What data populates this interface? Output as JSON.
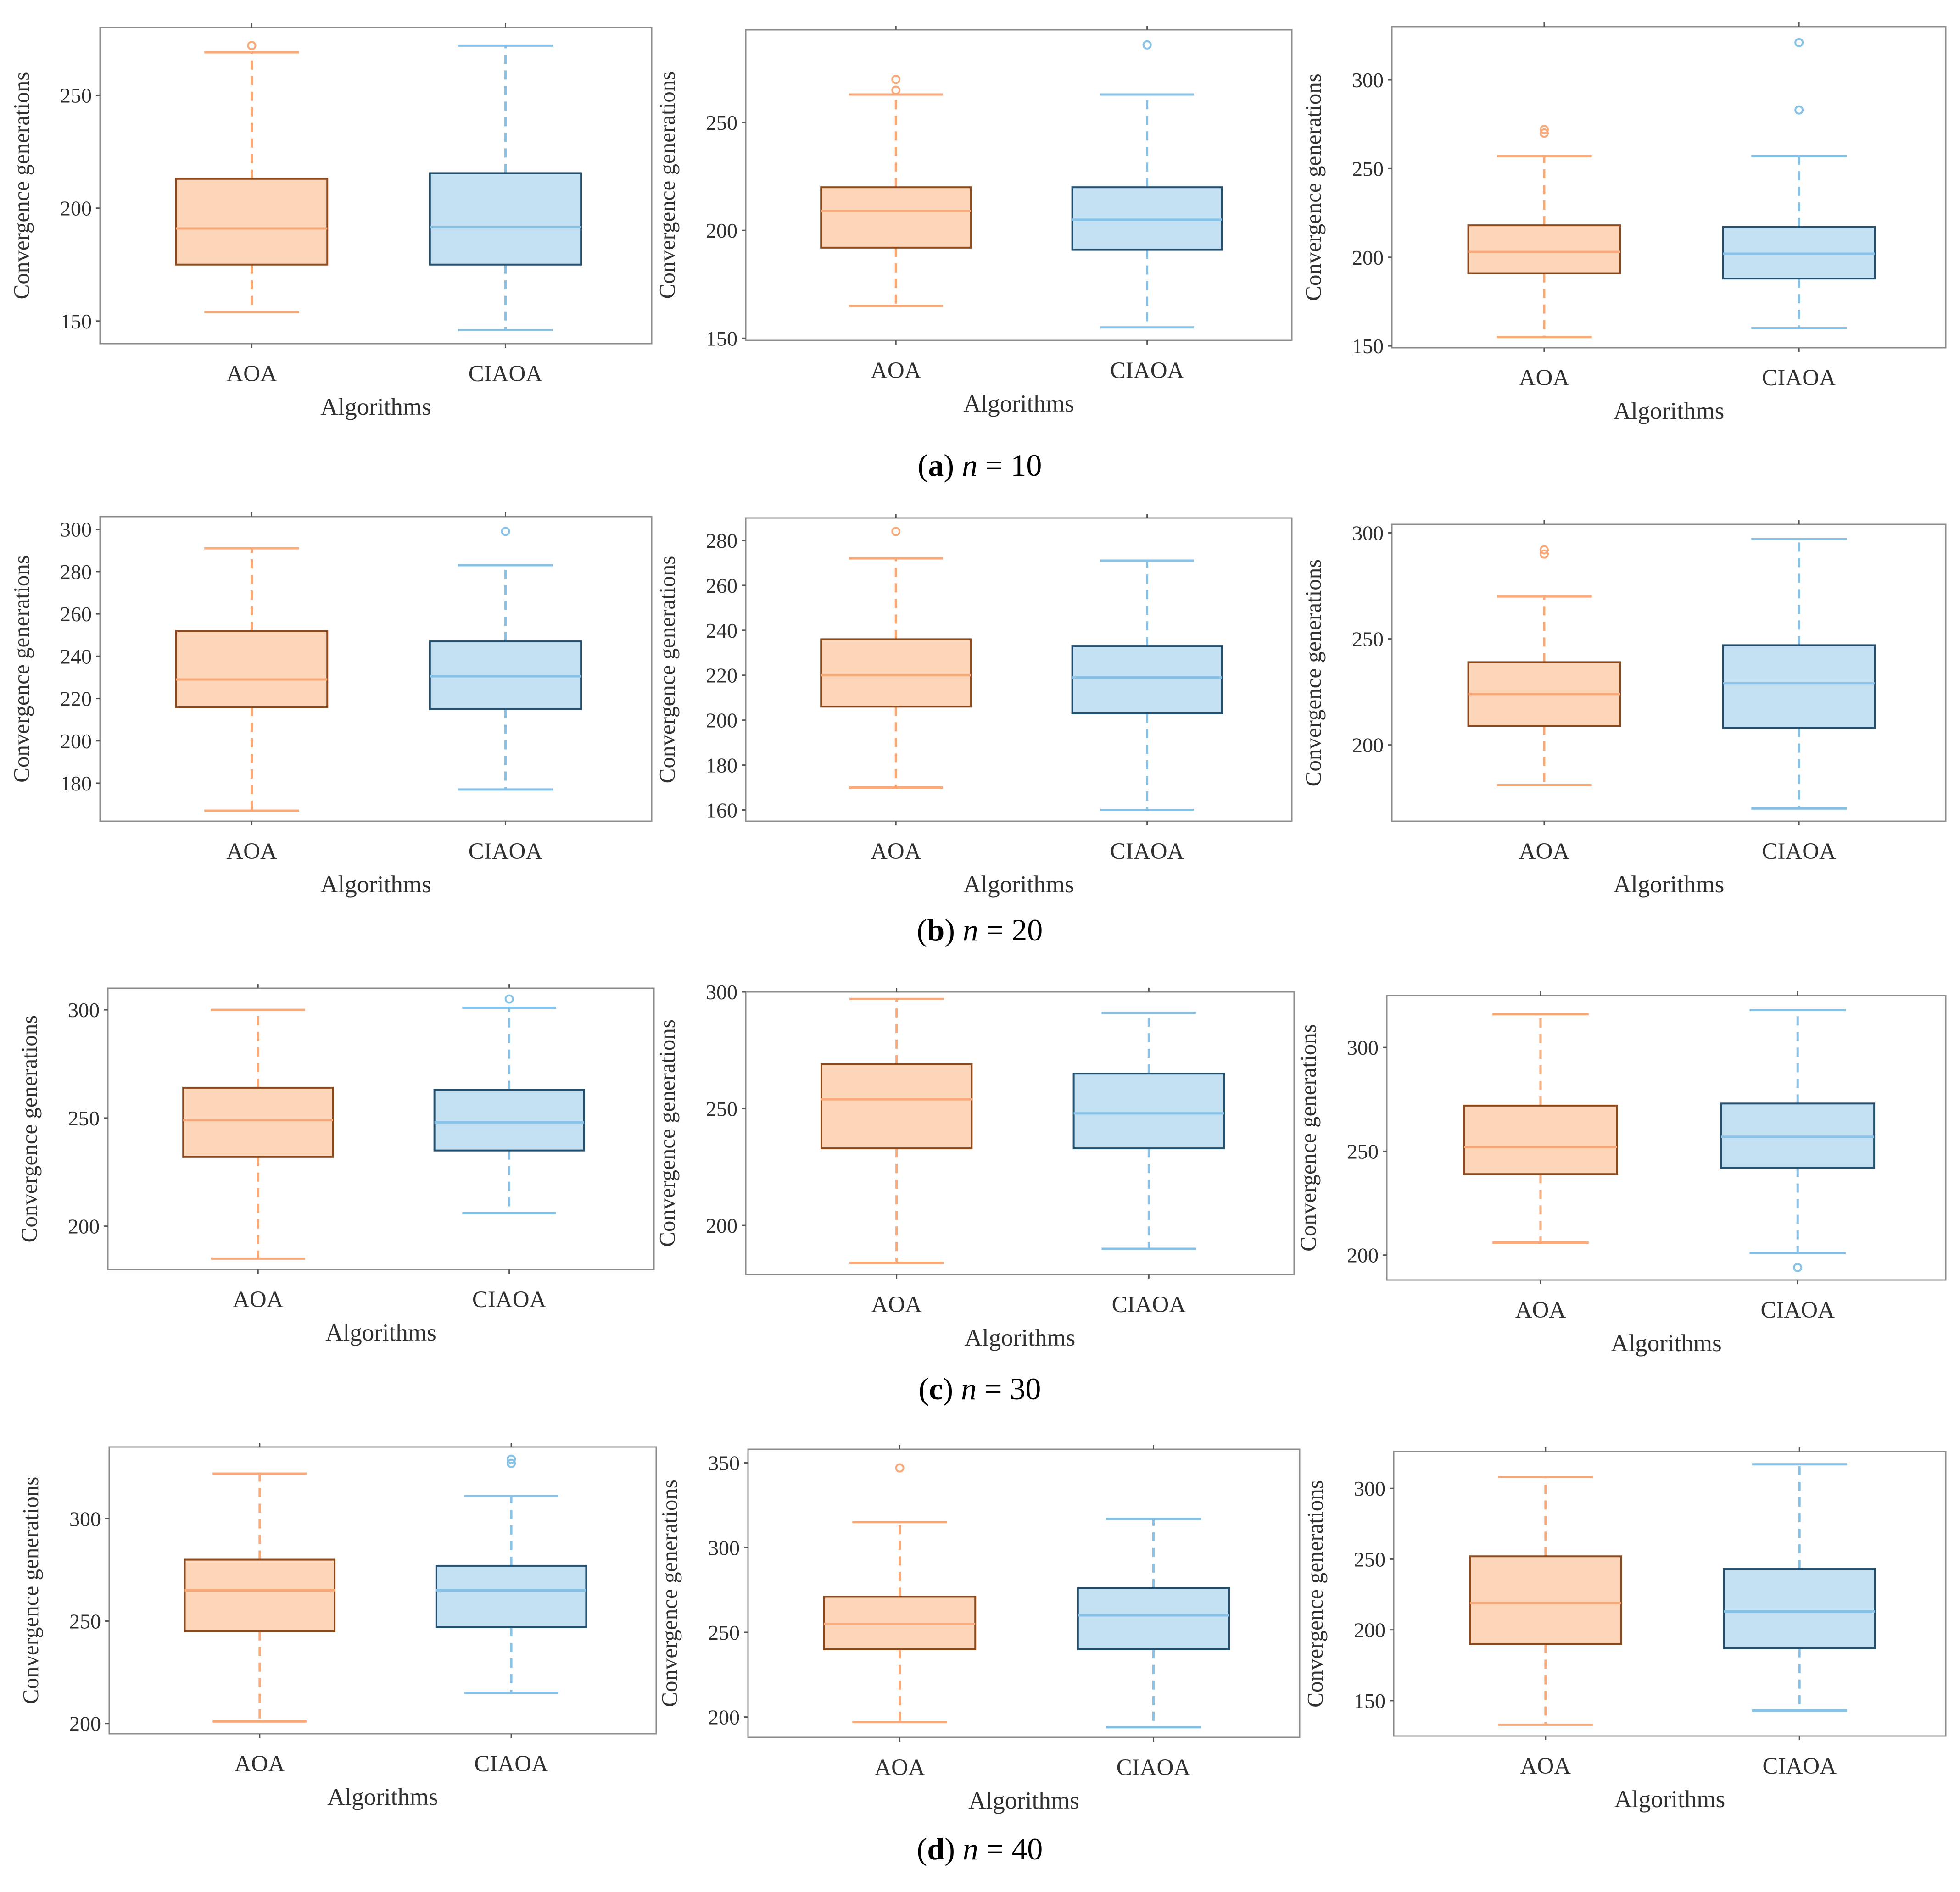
{
  "colors": {
    "AOA": {
      "fill": "#fdd5b8",
      "edge": "#8b4a1e",
      "line": "#f9a877"
    },
    "CIAOA": {
      "fill": "#c4e0f3",
      "edge": "#23506f",
      "line": "#86c2e8"
    },
    "frame": "#8c8c8c"
  },
  "chart_data": [
    {
      "type": "box",
      "group": "(a) n = 10",
      "xlabel": "Algorithms",
      "ylabel": "Convergence generations",
      "ylim": [
        140,
        280
      ],
      "yticks": [
        150,
        200,
        250
      ],
      "categories": [
        "AOA",
        "CIAOA"
      ],
      "boxes": [
        {
          "name": "AOA",
          "whislo": 154,
          "q1": 175,
          "med": 191,
          "q3": 213,
          "whishi": 269,
          "fliers": [
            272
          ]
        },
        {
          "name": "CIAOA",
          "whislo": 146,
          "q1": 175,
          "med": 191.5,
          "q3": 215.5,
          "whishi": 272,
          "fliers": []
        }
      ]
    },
    {
      "type": "box",
      "group": "(a) n = 10",
      "xlabel": "Algorithms",
      "ylabel": "Convergence generations",
      "ylim": [
        149,
        293
      ],
      "yticks": [
        150,
        200,
        250
      ],
      "categories": [
        "AOA",
        "CIAOA"
      ],
      "boxes": [
        {
          "name": "AOA",
          "whislo": 165,
          "q1": 192,
          "med": 209,
          "q3": 220,
          "whishi": 263,
          "fliers": [
            265,
            270
          ]
        },
        {
          "name": "CIAOA",
          "whislo": 155,
          "q1": 191,
          "med": 205,
          "q3": 220,
          "whishi": 263,
          "fliers": [
            286
          ]
        }
      ]
    },
    {
      "type": "box",
      "group": "(a) n = 10",
      "xlabel": "Algorithms",
      "ylabel": "Convergence generations",
      "ylim": [
        149,
        330
      ],
      "yticks": [
        150,
        200,
        250,
        300
      ],
      "categories": [
        "AOA",
        "CIAOA"
      ],
      "boxes": [
        {
          "name": "AOA",
          "whislo": 155,
          "q1": 191,
          "med": 203,
          "q3": 218,
          "whishi": 257,
          "fliers": [
            270,
            272
          ]
        },
        {
          "name": "CIAOA",
          "whislo": 160,
          "q1": 188,
          "med": 202,
          "q3": 217,
          "whishi": 257,
          "fliers": [
            283,
            321
          ]
        }
      ]
    },
    {
      "type": "box",
      "group": "(b) n = 20",
      "xlabel": "Algorithms",
      "ylabel": "Convergence generations",
      "ylim": [
        162,
        306
      ],
      "yticks": [
        180,
        200,
        220,
        240,
        260,
        280,
        300
      ],
      "categories": [
        "AOA",
        "CIAOA"
      ],
      "boxes": [
        {
          "name": "AOA",
          "whislo": 167,
          "q1": 216,
          "med": 229,
          "q3": 252,
          "whishi": 291,
          "fliers": []
        },
        {
          "name": "CIAOA",
          "whislo": 177,
          "q1": 215,
          "med": 230.5,
          "q3": 247,
          "whishi": 283,
          "fliers": [
            299
          ]
        }
      ]
    },
    {
      "type": "box",
      "group": "(b) n = 20",
      "xlabel": "Algorithms",
      "ylabel": "Convergence generations",
      "ylim": [
        155,
        290
      ],
      "yticks": [
        160,
        180,
        200,
        220,
        240,
        260,
        280
      ],
      "categories": [
        "AOA",
        "CIAOA"
      ],
      "boxes": [
        {
          "name": "AOA",
          "whislo": 170,
          "q1": 206,
          "med": 220,
          "q3": 236,
          "whishi": 272,
          "fliers": [
            284
          ]
        },
        {
          "name": "CIAOA",
          "whislo": 160,
          "q1": 203,
          "med": 219,
          "q3": 233,
          "whishi": 271,
          "fliers": []
        }
      ]
    },
    {
      "type": "box",
      "group": "(b) n = 20",
      "xlabel": "Algorithms",
      "ylabel": "Convergence generations",
      "ylim": [
        164,
        304
      ],
      "yticks": [
        200,
        250,
        300
      ],
      "categories": [
        "AOA",
        "CIAOA"
      ],
      "boxes": [
        {
          "name": "AOA",
          "whislo": 181,
          "q1": 209,
          "med": 224,
          "q3": 239,
          "whishi": 270,
          "fliers": [
            290,
            292
          ]
        },
        {
          "name": "CIAOA",
          "whislo": 170,
          "q1": 208,
          "med": 229,
          "q3": 247,
          "whishi": 297,
          "fliers": []
        }
      ]
    },
    {
      "type": "box",
      "group": "(c) n = 30",
      "xlabel": "Algorithms",
      "ylabel": "Convergence generations",
      "ylim": [
        180,
        310
      ],
      "yticks": [
        200,
        250,
        300
      ],
      "categories": [
        "AOA",
        "CIAOA"
      ],
      "boxes": [
        {
          "name": "AOA",
          "whislo": 185,
          "q1": 232,
          "med": 249,
          "q3": 264,
          "whishi": 300,
          "fliers": []
        },
        {
          "name": "CIAOA",
          "whislo": 206,
          "q1": 235,
          "med": 248,
          "q3": 263,
          "whishi": 301,
          "fliers": [
            305
          ]
        }
      ]
    },
    {
      "type": "box",
      "group": "(c) n = 30",
      "xlabel": "Algorithms",
      "ylabel": "Convergence generations",
      "ylim": [
        179,
        300
      ],
      "yticks": [
        200,
        250,
        300
      ],
      "categories": [
        "AOA",
        "CIAOA"
      ],
      "boxes": [
        {
          "name": "AOA",
          "whislo": 184,
          "q1": 233,
          "med": 254,
          "q3": 269,
          "whishi": 297,
          "fliers": []
        },
        {
          "name": "CIAOA",
          "whislo": 190,
          "q1": 233,
          "med": 248,
          "q3": 265,
          "whishi": 291,
          "fliers": []
        }
      ]
    },
    {
      "type": "box",
      "group": "(c) n = 30",
      "xlabel": "Algorithms",
      "ylabel": "Convergence generations",
      "ylim": [
        188,
        325
      ],
      "yticks": [
        200,
        250,
        300
      ],
      "categories": [
        "AOA",
        "CIAOA"
      ],
      "boxes": [
        {
          "name": "AOA",
          "whislo": 206,
          "q1": 239,
          "med": 252,
          "q3": 272,
          "whishi": 316,
          "fliers": []
        },
        {
          "name": "CIAOA",
          "whislo": 201,
          "q1": 242,
          "med": 257,
          "q3": 273,
          "whishi": 318,
          "fliers": [
            194
          ]
        }
      ]
    },
    {
      "type": "box",
      "group": "(d) n = 40",
      "xlabel": "Algorithms",
      "ylabel": "Convergence generations",
      "ylim": [
        195,
        335
      ],
      "yticks": [
        200,
        250,
        300
      ],
      "categories": [
        "AOA",
        "CIAOA"
      ],
      "boxes": [
        {
          "name": "AOA",
          "whislo": 201,
          "q1": 245,
          "med": 265,
          "q3": 280,
          "whishi": 322,
          "fliers": []
        },
        {
          "name": "CIAOA",
          "whislo": 215,
          "q1": 247,
          "med": 265,
          "q3": 277,
          "whishi": 311,
          "fliers": [
            327,
            329
          ]
        }
      ]
    },
    {
      "type": "box",
      "group": "(d) n = 40",
      "xlabel": "Algorithms",
      "ylabel": "Convergence generations",
      "ylim": [
        188,
        358
      ],
      "yticks": [
        200,
        250,
        300,
        350
      ],
      "categories": [
        "AOA",
        "CIAOA"
      ],
      "boxes": [
        {
          "name": "AOA",
          "whislo": 197,
          "q1": 240,
          "med": 255,
          "q3": 271,
          "whishi": 315,
          "fliers": [
            347
          ]
        },
        {
          "name": "CIAOA",
          "whislo": 194,
          "q1": 240,
          "med": 260,
          "q3": 276,
          "whishi": 317,
          "fliers": []
        }
      ]
    },
    {
      "type": "box",
      "group": "(d) n = 40",
      "xlabel": "Algorithms",
      "ylabel": "Convergence generations",
      "ylim": [
        125,
        326
      ],
      "yticks": [
        150,
        200,
        250,
        300
      ],
      "categories": [
        "AOA",
        "CIAOA"
      ],
      "boxes": [
        {
          "name": "AOA",
          "whislo": 133,
          "q1": 190,
          "med": 219,
          "q3": 252,
          "whishi": 308,
          "fliers": []
        },
        {
          "name": "CIAOA",
          "whislo": 143,
          "q1": 187,
          "med": 213,
          "q3": 243,
          "whishi": 317,
          "fliers": []
        }
      ]
    }
  ],
  "captions": [
    {
      "letter": "a",
      "variable": "n",
      "equals": "=",
      "value": "10"
    },
    {
      "letter": "b",
      "variable": "n",
      "equals": "=",
      "value": "20"
    },
    {
      "letter": "c",
      "variable": "n",
      "equals": "=",
      "value": "30"
    },
    {
      "letter": "d",
      "variable": "n",
      "equals": "=",
      "value": "40"
    }
  ]
}
